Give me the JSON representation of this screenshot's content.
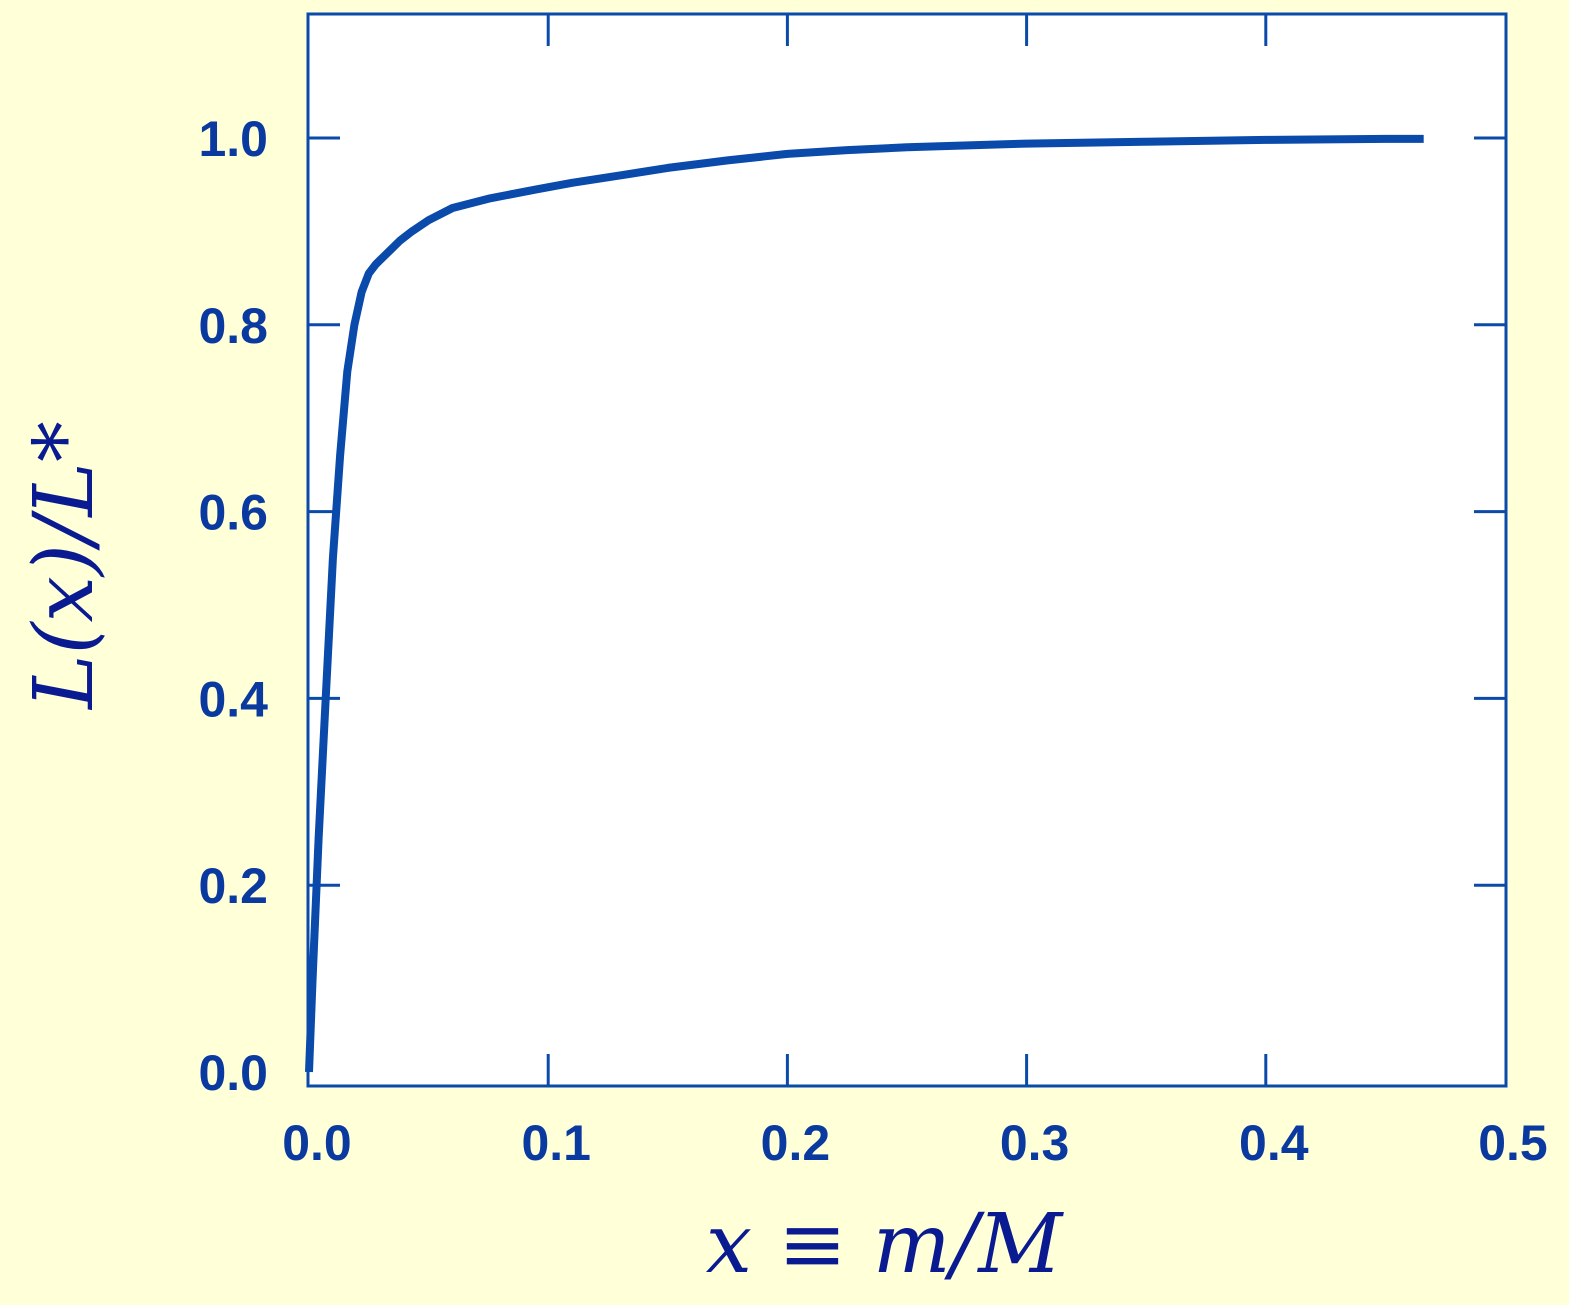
{
  "chart_data": {
    "type": "line",
    "title": "",
    "xlabel": "x ≡ m/M",
    "ylabel": "L(x)/L*",
    "xlim": [
      0.0,
      0.5
    ],
    "ylim": [
      0.0,
      1.13
    ],
    "x_ticks": [
      0.0,
      0.1,
      0.2,
      0.3,
      0.4,
      0.5
    ],
    "x_tick_labels": [
      "0.0",
      "0.1",
      "0.2",
      "0.3",
      "0.4",
      "0.5"
    ],
    "y_ticks": [
      0.0,
      0.2,
      0.4,
      0.6,
      0.8,
      1.0
    ],
    "y_tick_labels": [
      "0.0",
      "0.2",
      "0.4",
      "0.6",
      "0.8",
      "1.0"
    ],
    "grid": false,
    "legend": "none",
    "colors": {
      "background": "#ffffd8",
      "plot_area": "#ffffff",
      "line": "#0a4aaa",
      "axis": "#0a4aaa",
      "text": "#0a3aa0",
      "title_text": "#0a1a90"
    },
    "series": [
      {
        "x": [
          0.0,
          0.0015,
          0.004,
          0.007,
          0.01,
          0.013,
          0.016,
          0.019,
          0.022,
          0.025,
          0.028,
          0.03,
          0.034,
          0.038,
          0.043,
          0.05,
          0.06,
          0.075,
          0.095,
          0.11,
          0.13,
          0.15,
          0.175,
          0.2,
          0.225,
          0.25,
          0.3,
          0.35,
          0.4,
          0.45,
          0.466
        ],
        "y": [
          0.0,
          0.1,
          0.25,
          0.4,
          0.55,
          0.66,
          0.75,
          0.8,
          0.835,
          0.855,
          0.865,
          0.87,
          0.88,
          0.89,
          0.9,
          0.912,
          0.925,
          0.935,
          0.945,
          0.952,
          0.96,
          0.968,
          0.976,
          0.983,
          0.987,
          0.99,
          0.994,
          0.996,
          0.998,
          0.999,
          0.999
        ]
      }
    ]
  }
}
